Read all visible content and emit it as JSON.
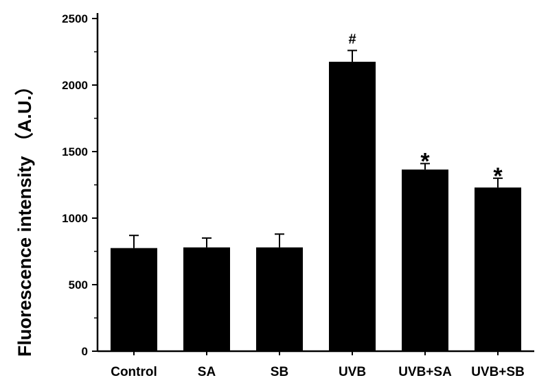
{
  "chart_data": {
    "type": "bar",
    "title": "",
    "xlabel": "",
    "ylabel": "Fluorescence intensity  （A.U.）",
    "ylim": [
      0,
      2500
    ],
    "yticks": [
      0,
      500,
      1000,
      1500,
      2000,
      2500
    ],
    "categories": [
      "Control",
      "SA",
      "SB",
      "UVB",
      "UVB+SA",
      "UVB+SB"
    ],
    "values": [
      775,
      780,
      780,
      2175,
      1365,
      1230
    ],
    "errors": [
      95,
      70,
      100,
      85,
      45,
      70
    ],
    "annotations": [
      "",
      "",
      "",
      "#",
      "*",
      "*"
    ],
    "grid": false,
    "bar_color": "#000000"
  }
}
